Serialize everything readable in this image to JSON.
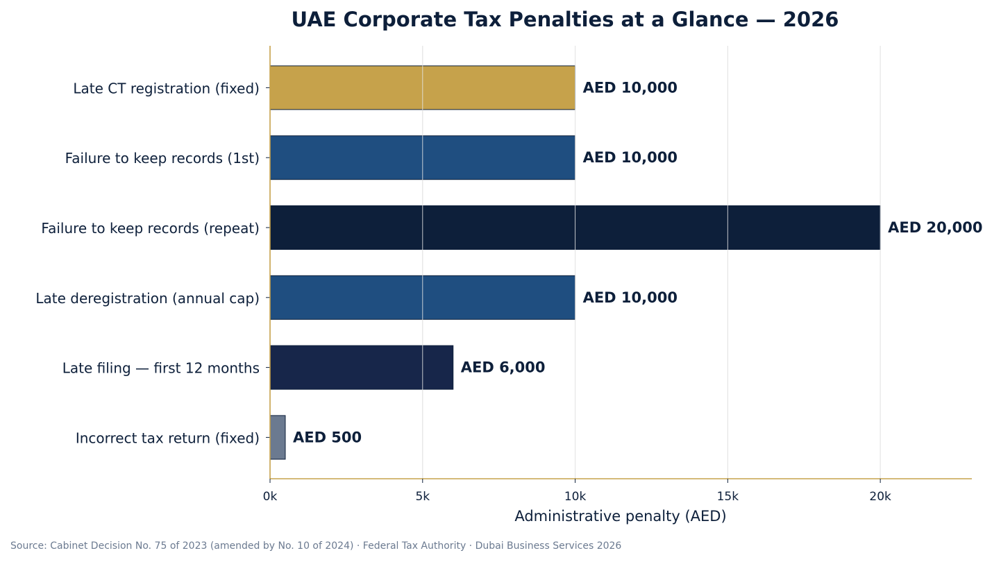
{
  "chart_data": {
    "type": "bar",
    "orientation": "horizontal",
    "title": "UAE Corporate Tax Penalties at a Glance — 2026",
    "xlabel": "Administrative penalty (AED)",
    "ylabel": "",
    "xlim": [
      0,
      23000
    ],
    "xticks": [
      0,
      5000,
      10000,
      15000,
      20000
    ],
    "xtick_labels": [
      "0k",
      "5k",
      "10k",
      "15k",
      "20k"
    ],
    "grid": "vertical",
    "categories": [
      "Late CT registration (fixed)",
      "Failure to keep records (1st)",
      "Failure to keep records (repeat)",
      "Late deregistration (annual cap)",
      "Late filing — first 12 months",
      "Incorrect tax return (fixed)"
    ],
    "values": [
      10000,
      10000,
      20000,
      10000,
      6000,
      500
    ],
    "data_labels": [
      "AED 10,000",
      "AED 10,000",
      "AED 20,000",
      "AED 10,000",
      "AED 6,000",
      "AED 500"
    ],
    "bar_colors": [
      "#c6a24b",
      "#1f4e80",
      "#0d1f3a",
      "#1f4e80",
      "#17264a",
      "#6b7a90"
    ]
  },
  "colors": {
    "axis": "#c6a24b",
    "text": "#0d1f3a",
    "grid": "#e4e4e4",
    "source_text": "#6b7a90"
  },
  "source": "Source: Cabinet Decision No. 75 of 2023 (amended by No. 10 of 2024) · Federal Tax Authority · Dubai Business Services 2026"
}
